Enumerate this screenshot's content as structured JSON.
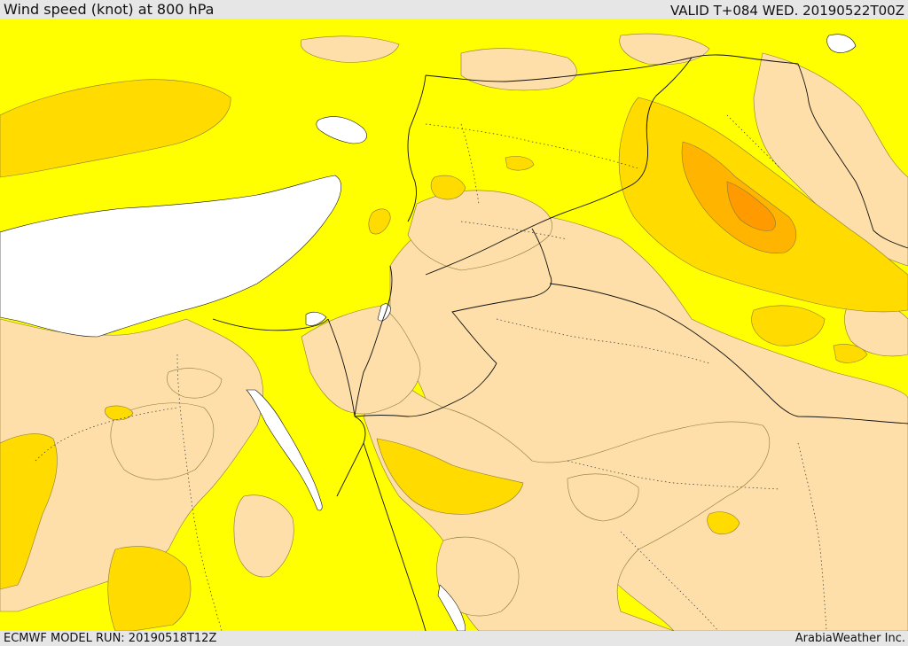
{
  "header": {
    "title": "Wind speed (knot) at 800 hPa",
    "valid": "VALID T+084 WED. 20190522T00Z"
  },
  "footer": {
    "model_run": "ECMWF MODEL RUN: 20190518T12Z",
    "brand": "ArabiaWeather Inc."
  },
  "map": {
    "colors": {
      "speed_low": "#fedfa9",
      "speed_mid": "#ffff00",
      "speed_high": "#ffdb00",
      "speed_higher": "#ffb400",
      "speed_highest": "#ff9a00",
      "water_masked": "#ffffff",
      "border_line": "#111111",
      "contour_line": "#8a7a3a"
    }
  }
}
